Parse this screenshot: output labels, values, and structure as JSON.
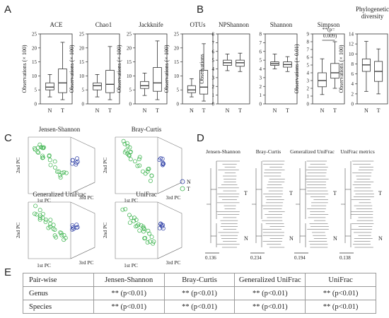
{
  "panel_labels": [
    "A",
    "B",
    "C",
    "D",
    "E"
  ],
  "chart_data": [
    {
      "type": "box",
      "panel": "A",
      "title": "ACE",
      "ylabel": "Observations (× 100)",
      "ylim": [
        0,
        25
      ],
      "yticks": [
        0,
        5,
        10,
        15,
        20,
        25
      ],
      "categories": [
        "N",
        "T"
      ],
      "boxes": [
        {
          "min": 2.5,
          "q1": 5,
          "median": 6,
          "q3": 7.5,
          "max": 10.5
        },
        {
          "min": 1.5,
          "q1": 4,
          "median": 7.5,
          "q3": 12.5,
          "max": 22
        }
      ]
    },
    {
      "type": "box",
      "panel": "A",
      "title": "Chao1",
      "ylabel": "Observations (× 100)",
      "ylim": [
        0,
        25
      ],
      "yticks": [
        0,
        5,
        10,
        15,
        20,
        25
      ],
      "categories": [
        "N",
        "T"
      ],
      "boxes": [
        {
          "min": 2.5,
          "q1": 5,
          "median": 6.5,
          "q3": 7.5,
          "max": 10.5
        },
        {
          "min": 1.5,
          "q1": 4,
          "median": 7,
          "q3": 12,
          "max": 20.5
        }
      ]
    },
    {
      "type": "box",
      "panel": "A",
      "title": "Jackknife",
      "ylabel": "Observations (× 100)",
      "ylim": [
        0,
        25
      ],
      "yticks": [
        0,
        5,
        10,
        15,
        20,
        25
      ],
      "categories": [
        "N",
        "T"
      ],
      "boxes": [
        {
          "min": 3,
          "q1": 5.5,
          "median": 6.5,
          "q3": 8,
          "max": 11
        },
        {
          "min": 1.5,
          "q1": 4.5,
          "median": 7.5,
          "q3": 13,
          "max": 22.5
        }
      ]
    },
    {
      "type": "box",
      "panel": "A",
      "title": "OTUs",
      "ylabel": "Observations (× 100)",
      "ylim": [
        0,
        25
      ],
      "yticks": [
        0,
        5,
        10,
        15,
        20,
        25
      ],
      "categories": [
        "N",
        "T"
      ],
      "boxes": [
        {
          "min": 2.5,
          "q1": 4,
          "median": 5,
          "q3": 6.5,
          "max": 9
        },
        {
          "min": 1,
          "q1": 3.5,
          "median": 6,
          "q3": 12,
          "max": 21.5
        }
      ]
    },
    {
      "type": "box",
      "panel": "B",
      "title": "NPShannon",
      "ylabel": "Observations",
      "ylim": [
        0,
        8
      ],
      "yticks": [
        0,
        1,
        2,
        3,
        4,
        5,
        6,
        7,
        8
      ],
      "categories": [
        "N",
        "T"
      ],
      "boxes": [
        {
          "min": 3.8,
          "q1": 4.4,
          "median": 4.7,
          "q3": 5,
          "max": 5.7
        },
        {
          "min": 3.7,
          "q1": 4.3,
          "median": 4.7,
          "q3": 5,
          "max": 5.8
        }
      ]
    },
    {
      "type": "box",
      "panel": "B",
      "title": "Shannon",
      "ylabel": "",
      "ylim": [
        0,
        8
      ],
      "yticks": [
        0,
        1,
        2,
        3,
        4,
        5,
        6,
        7,
        8
      ],
      "categories": [
        "N",
        "T"
      ],
      "boxes": [
        {
          "min": 4,
          "q1": 4.4,
          "median": 4.6,
          "q3": 4.8,
          "max": 5.7
        },
        {
          "min": 3.7,
          "q1": 4.2,
          "median": 4.5,
          "q3": 4.8,
          "max": 5.4
        }
      ]
    },
    {
      "type": "box",
      "panel": "B",
      "title": "Simpson",
      "ylabel": "Observations (× 0.01)",
      "ylim": [
        0,
        9
      ],
      "yticks": [
        0,
        1,
        2,
        3,
        4,
        5,
        6,
        7,
        8,
        9
      ],
      "categories": [
        "N",
        "T"
      ],
      "annotation": "**(p= 0.009)",
      "boxes": [
        {
          "min": 1.2,
          "q1": 2.2,
          "median": 3,
          "q3": 4,
          "max": 5.8
        },
        {
          "min": 2,
          "q1": 3.3,
          "median": 4,
          "q3": 5.2,
          "max": 8
        }
      ]
    },
    {
      "type": "box",
      "panel": "B",
      "title": "Phylogenetic diversity",
      "ylabel": "Observations (× 100)",
      "ylim": [
        0,
        14
      ],
      "yticks": [
        0,
        2,
        4,
        6,
        8,
        10,
        12,
        14
      ],
      "categories": [
        "N",
        "T"
      ],
      "boxes": [
        {
          "min": 2.5,
          "q1": 6.5,
          "median": 7.8,
          "q3": 9,
          "max": 12.5
        },
        {
          "min": 2,
          "q1": 4.5,
          "median": 6.5,
          "q3": 8.5,
          "max": 11
        }
      ]
    },
    {
      "type": "scatter3d",
      "panel": "C",
      "title": "Jensen-Shannon",
      "xlabel": "1st PC",
      "ylabel": "2nd PC",
      "zlabel": "3rd PC",
      "legend": [
        "N",
        "T"
      ],
      "series_colors": {
        "N": "#2e3fa6",
        "T": "#38b24a"
      }
    },
    {
      "type": "scatter3d",
      "panel": "C",
      "title": "Bray-Curtis",
      "xlabel": "1st PC",
      "ylabel": "2nd PC",
      "zlabel": "3rd PC"
    },
    {
      "type": "scatter3d",
      "panel": "C",
      "title": "Generalized UniFrac",
      "xlabel": "1st PC",
      "ylabel": "2nd PC",
      "zlabel": "3rd PC"
    },
    {
      "type": "scatter3d",
      "panel": "C",
      "title": "UniFrac",
      "xlabel": "1st PC",
      "ylabel": "2nd PC",
      "zlabel": "3rd PC"
    },
    {
      "type": "dendrogram",
      "panel": "D",
      "title": "Jensen-Shannon",
      "scale": "0.136",
      "groups": [
        "T",
        "N"
      ]
    },
    {
      "type": "dendrogram",
      "panel": "D",
      "title": "Bray-Curtis",
      "scale": "0.234",
      "groups": [
        "T",
        "N"
      ]
    },
    {
      "type": "dendrogram",
      "panel": "D",
      "title": "Generalized UniFrac",
      "scale": "0.194",
      "groups": [
        "T",
        "N"
      ]
    },
    {
      "type": "dendrogram",
      "panel": "D",
      "title": "UniFrac metrics",
      "scale": "0.138",
      "groups": [
        "T",
        "N"
      ]
    },
    {
      "type": "table",
      "panel": "E",
      "header": [
        "Pair-wise",
        "Jensen-Shannon",
        "Bray-Curtis",
        "Generalized UniFrac",
        "UniFrac"
      ],
      "rows": [
        [
          "Genus",
          "** (p<0.01)",
          "** (p<0.01)",
          "** (p<0.01)",
          "** (p<0.01)"
        ],
        [
          "Species",
          "** (p<0.01)",
          "** (p<0.01)",
          "** (p<0.01)",
          "** (p<0.01)"
        ]
      ]
    }
  ]
}
